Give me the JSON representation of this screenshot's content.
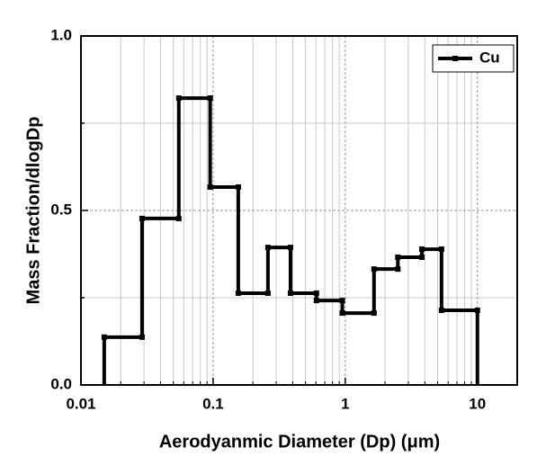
{
  "chart_data": {
    "type": "histogram",
    "x_label": "Aerodyanmic Diameter (Dp) (μm)",
    "y_label": "Mass Fraction/dlogDp",
    "x_scale": "log",
    "grid": true,
    "legend_position": "upper right",
    "series": [
      {
        "name": "Cu",
        "color": "#000000",
        "bins": [
          0.015,
          0.029,
          0.055,
          0.095,
          0.155,
          0.26,
          0.385,
          0.605,
          0.95,
          1.65,
          2.5,
          3.8,
          5.35,
          10
        ],
        "values": [
          0.137,
          0.477,
          0.822,
          0.567,
          0.263,
          0.394,
          0.263,
          0.242,
          0.206,
          0.332,
          0.366,
          0.389,
          0.214
        ]
      }
    ],
    "xlim": [
      0.01,
      20
    ],
    "xticks": [
      0.01,
      0.1,
      1,
      10
    ],
    "ylim": [
      0,
      1
    ],
    "yticks": [
      {
        "value": 0,
        "label": "0.0"
      },
      {
        "value": 0.5,
        "label": "0.5"
      },
      {
        "value": 1,
        "label": "1.0"
      }
    ],
    "y_minor_ticks": [
      0.25,
      0.75
    ]
  }
}
